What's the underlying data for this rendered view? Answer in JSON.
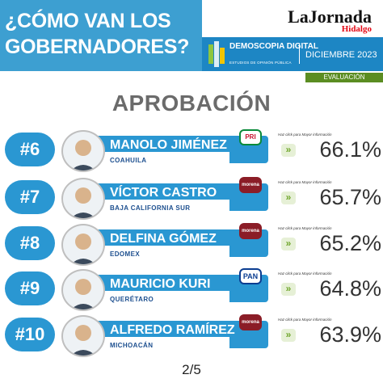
{
  "header": {
    "title": "¿CÓMO VAN LOS GOBERNADORES?",
    "logo_main": "LaJornada",
    "logo_sub": "Hidalgo",
    "brand_name": "DEMOSCOPIA DIGITAL",
    "brand_tagline": "ESTUDIOS DE OPINIÓN PÚBLICA",
    "date": "DICIEMBRE 2023",
    "eval_label": "EVALUACIÓN"
  },
  "section_title": "APROBACIÓN",
  "click_hint": "Haz click para Mayor información",
  "rows": [
    {
      "rank": "#6",
      "name": "MANOLO JIMÉNEZ",
      "state": "COAHUILA",
      "party": "PRI",
      "pct": "66.1%"
    },
    {
      "rank": "#7",
      "name": "VÍCTOR CASTRO",
      "state": "BAJA CALIFORNIA SUR",
      "party": "morena",
      "pct": "65.7%"
    },
    {
      "rank": "#8",
      "name": "DELFINA GÓMEZ",
      "state": "EDOMEX",
      "party": "morena",
      "pct": "65.2%"
    },
    {
      "rank": "#9",
      "name": "MAURICIO KURI",
      "state": "QUERÉTARO",
      "party": "PAN",
      "pct": "64.8%"
    },
    {
      "rank": "#10",
      "name": "ALFREDO RAMÍREZ",
      "state": "MICHOACÁN",
      "party": "morena",
      "pct": "63.9%"
    }
  ],
  "page": "2/5",
  "colors": {
    "accent": "#2a97d2",
    "header": "#3d9fd1",
    "brand": "#1d86c4",
    "eval": "#5b8d22",
    "morena": "#8b1d27"
  }
}
